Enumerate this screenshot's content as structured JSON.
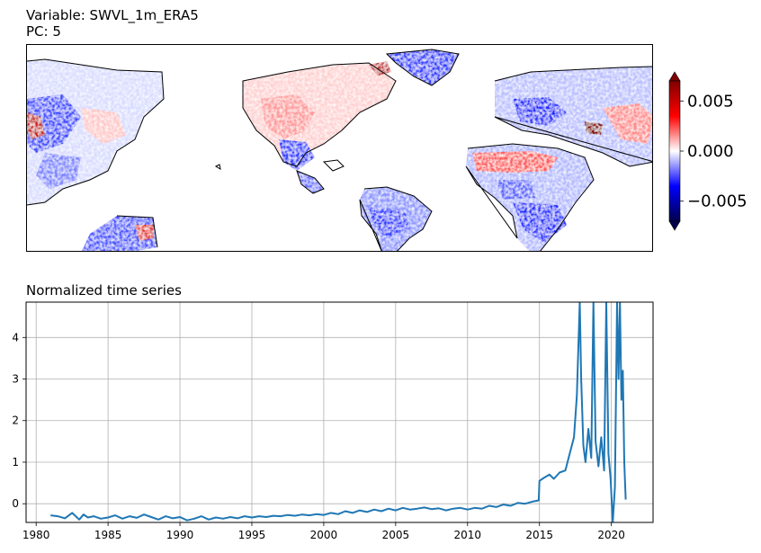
{
  "map_panel": {
    "title_line1": "Variable: SWVL_1m_ERA5",
    "title_line2": "PC: 5",
    "colorbar": {
      "min": -0.007,
      "max": 0.007,
      "ticks": [
        "0.005",
        "0.000",
        "−0.005"
      ],
      "tick_values": [
        0.005,
        0.0,
        -0.005
      ],
      "colors": [
        "#00004d",
        "#0000ff",
        "#ffffff",
        "#ff0000",
        "#800000"
      ]
    }
  },
  "chart_data": {
    "type": "line",
    "title": "Normalized time series",
    "xlabel": "",
    "ylabel": "",
    "xlim": [
      1979.3,
      2022.9
    ],
    "ylim": [
      -0.45,
      4.85
    ],
    "xticks": [
      "1980",
      "1985",
      "1990",
      "1995",
      "2000",
      "2005",
      "2010",
      "2015",
      "2020"
    ],
    "yticks": [
      "0",
      "1",
      "2",
      "3",
      "4"
    ],
    "grid": true,
    "line_color": "#1f77b4",
    "series": [
      {
        "x": [
          1981.0,
          1981.5,
          1982.0,
          1982.5,
          1983.0,
          1983.3,
          1983.6,
          1984.0,
          1984.5,
          1985.0,
          1985.5,
          1986.0,
          1986.5,
          1987.0,
          1987.5,
          1988.0,
          1988.5,
          1989.0,
          1989.5,
          1990.0,
          1990.5,
          1991.0,
          1991.5,
          1992.0,
          1992.5,
          1993.0,
          1993.5,
          1994.0,
          1994.5,
          1995.0,
          1995.5,
          1996.0,
          1996.5,
          1997.0,
          1997.5,
          1998.0,
          1998.5,
          1999.0,
          1999.5,
          2000.0,
          2000.5,
          2001.0,
          2001.5,
          2002.0,
          2002.5,
          2003.0,
          2003.5,
          2004.0,
          2004.5,
          2005.0,
          2005.5,
          2006.0,
          2006.5,
          2007.0,
          2007.5,
          2008.0,
          2008.5,
          2009.0,
          2009.5,
          2010.0,
          2010.5,
          2011.0,
          2011.5,
          2012.0,
          2012.5,
          2013.0,
          2013.5,
          2014.0,
          2014.5,
          2014.95,
          2015.0,
          2015.3,
          2015.7,
          2016.0,
          2016.4,
          2016.8,
          2017.1,
          2017.4,
          2017.6,
          2017.8,
          2017.9,
          2018.05,
          2018.2,
          2018.4,
          2018.6,
          2018.75,
          2018.9,
          2019.1,
          2019.3,
          2019.5,
          2019.65,
          2019.8,
          2019.95,
          2020.1,
          2020.25,
          2020.4,
          2020.5,
          2020.6,
          2020.7,
          2020.8,
          2020.9,
          2021.0
        ],
        "y": [
          -0.28,
          -0.3,
          -0.35,
          -0.22,
          -0.38,
          -0.26,
          -0.33,
          -0.3,
          -0.36,
          -0.33,
          -0.28,
          -0.36,
          -0.3,
          -0.34,
          -0.26,
          -0.32,
          -0.38,
          -0.3,
          -0.35,
          -0.32,
          -0.4,
          -0.36,
          -0.3,
          -0.38,
          -0.33,
          -0.36,
          -0.32,
          -0.35,
          -0.3,
          -0.33,
          -0.3,
          -0.32,
          -0.29,
          -0.3,
          -0.27,
          -0.29,
          -0.26,
          -0.28,
          -0.25,
          -0.27,
          -0.22,
          -0.25,
          -0.18,
          -0.22,
          -0.16,
          -0.2,
          -0.14,
          -0.18,
          -0.12,
          -0.16,
          -0.1,
          -0.14,
          -0.12,
          -0.09,
          -0.13,
          -0.11,
          -0.16,
          -0.12,
          -0.1,
          -0.14,
          -0.1,
          -0.12,
          -0.05,
          -0.08,
          -0.02,
          -0.05,
          0.02,
          0.0,
          0.05,
          0.08,
          0.55,
          0.62,
          0.7,
          0.6,
          0.75,
          0.8,
          1.2,
          1.6,
          2.6,
          4.85,
          3.0,
          1.4,
          1.0,
          1.8,
          1.1,
          4.85,
          1.5,
          0.9,
          1.6,
          0.8,
          4.85,
          1.2,
          0.6,
          -0.45,
          0.4,
          4.85,
          3.0,
          4.85,
          2.5,
          3.2,
          1.0,
          0.1
        ]
      }
    ]
  }
}
